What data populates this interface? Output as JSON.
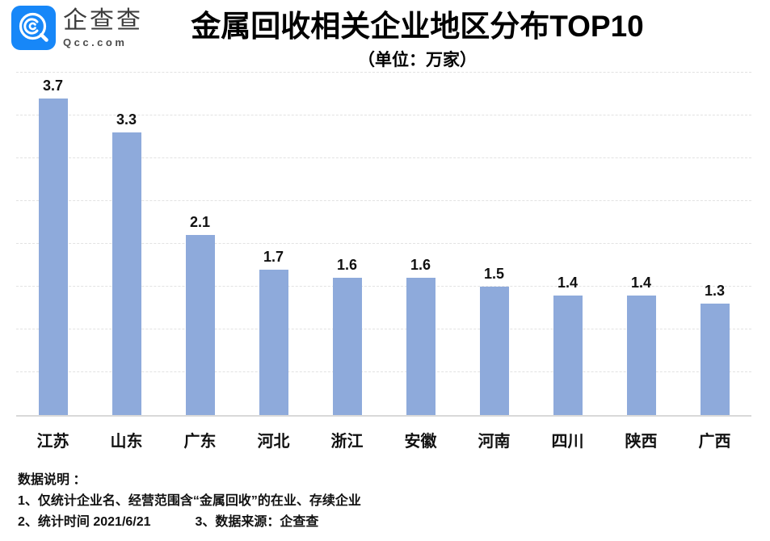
{
  "logo": {
    "name": "企查查",
    "domain": "Qcc.com",
    "brand_color": "#1787F8"
  },
  "header": {
    "title": "金属回收相关企业地区分布TOP10",
    "subtitle": "（单位：万家）"
  },
  "chart_data": {
    "type": "bar",
    "title": "金属回收相关企业地区分布TOP10",
    "subtitle": "（单位：万家）",
    "unit": "万家",
    "categories": [
      "江苏",
      "山东",
      "广东",
      "河北",
      "浙江",
      "安徽",
      "河南",
      "四川",
      "陕西",
      "广西"
    ],
    "values": [
      3.7,
      3.3,
      2.1,
      1.7,
      1.6,
      1.6,
      1.5,
      1.4,
      1.4,
      1.3
    ],
    "xlabel": "",
    "ylabel": "",
    "ylim": [
      0,
      4
    ],
    "gridline_step": 0.5,
    "grid": "horizontal-dashed",
    "legend": "none",
    "bar_color": "#8EAADB",
    "value_labels": true
  },
  "footer": {
    "heading": "数据说明 ：",
    "note1": "1、仅统计企业名、经营范围含“金属回收”的在业、存续企业",
    "note2": "2、统计时间 2021/6/21",
    "note3": "3、数据来源：企查查"
  }
}
